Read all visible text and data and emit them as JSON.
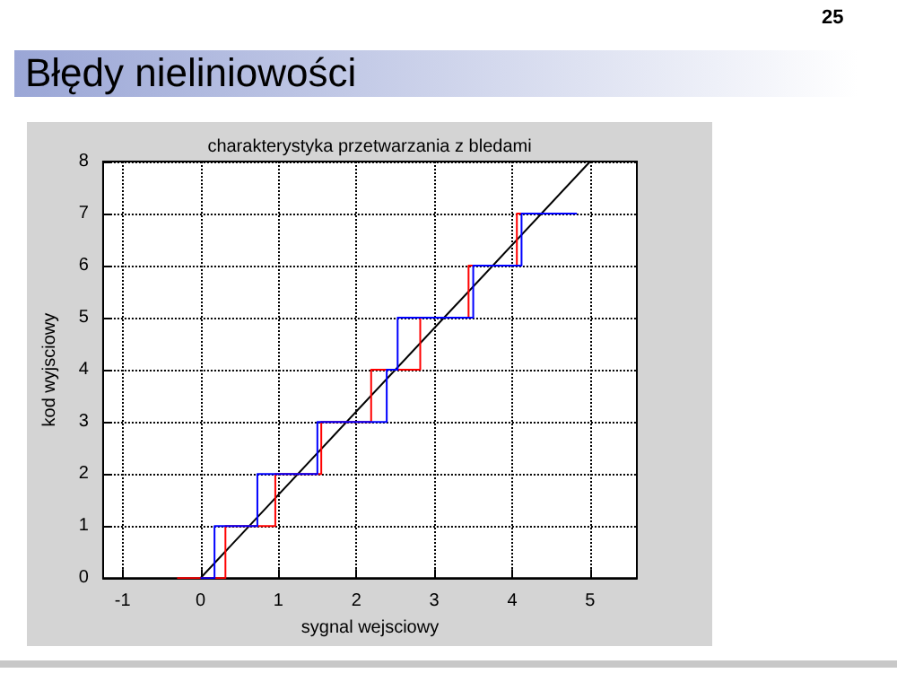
{
  "chart_data": {
    "type": "step",
    "title": "Błędy nieliniowości",
    "subtitle": "charakterystyka przetwarzania z bledami",
    "xlabel": "sygnal wejsciowy",
    "ylabel": "kod wyjsciowy",
    "annotations": [
      "25"
    ],
    "series": [
      {
        "type": "line",
        "color": "#000000",
        "x": [
          0,
          5
        ],
        "values": [
          0,
          8
        ]
      },
      {
        "color": "#ff0000",
        "x": [
          -0.3,
          0.32,
          0.96,
          1.55,
          2.19,
          2.82,
          3.44,
          4.06,
          4.12
        ],
        "values": [
          0,
          1,
          2,
          3,
          4,
          5,
          6,
          7,
          7
        ]
      },
      {
        "color": "#0000ff",
        "x": [
          0,
          0.18,
          0.73,
          1.5,
          2.39,
          2.53,
          3.5,
          4.12,
          4.83
        ],
        "values": [
          0,
          1,
          2,
          3,
          4,
          5,
          6,
          7,
          7
        ]
      }
    ],
    "xlim": [
      -1.25,
      5.6
    ],
    "xticks": [
      -1,
      0,
      1,
      2,
      3,
      4,
      5
    ],
    "ylim": [
      0,
      8
    ],
    "yticks": [
      0,
      1,
      2,
      3,
      4,
      5,
      6,
      7,
      8
    ],
    "grid": true,
    "marker": "none",
    "line_style": "solid"
  }
}
